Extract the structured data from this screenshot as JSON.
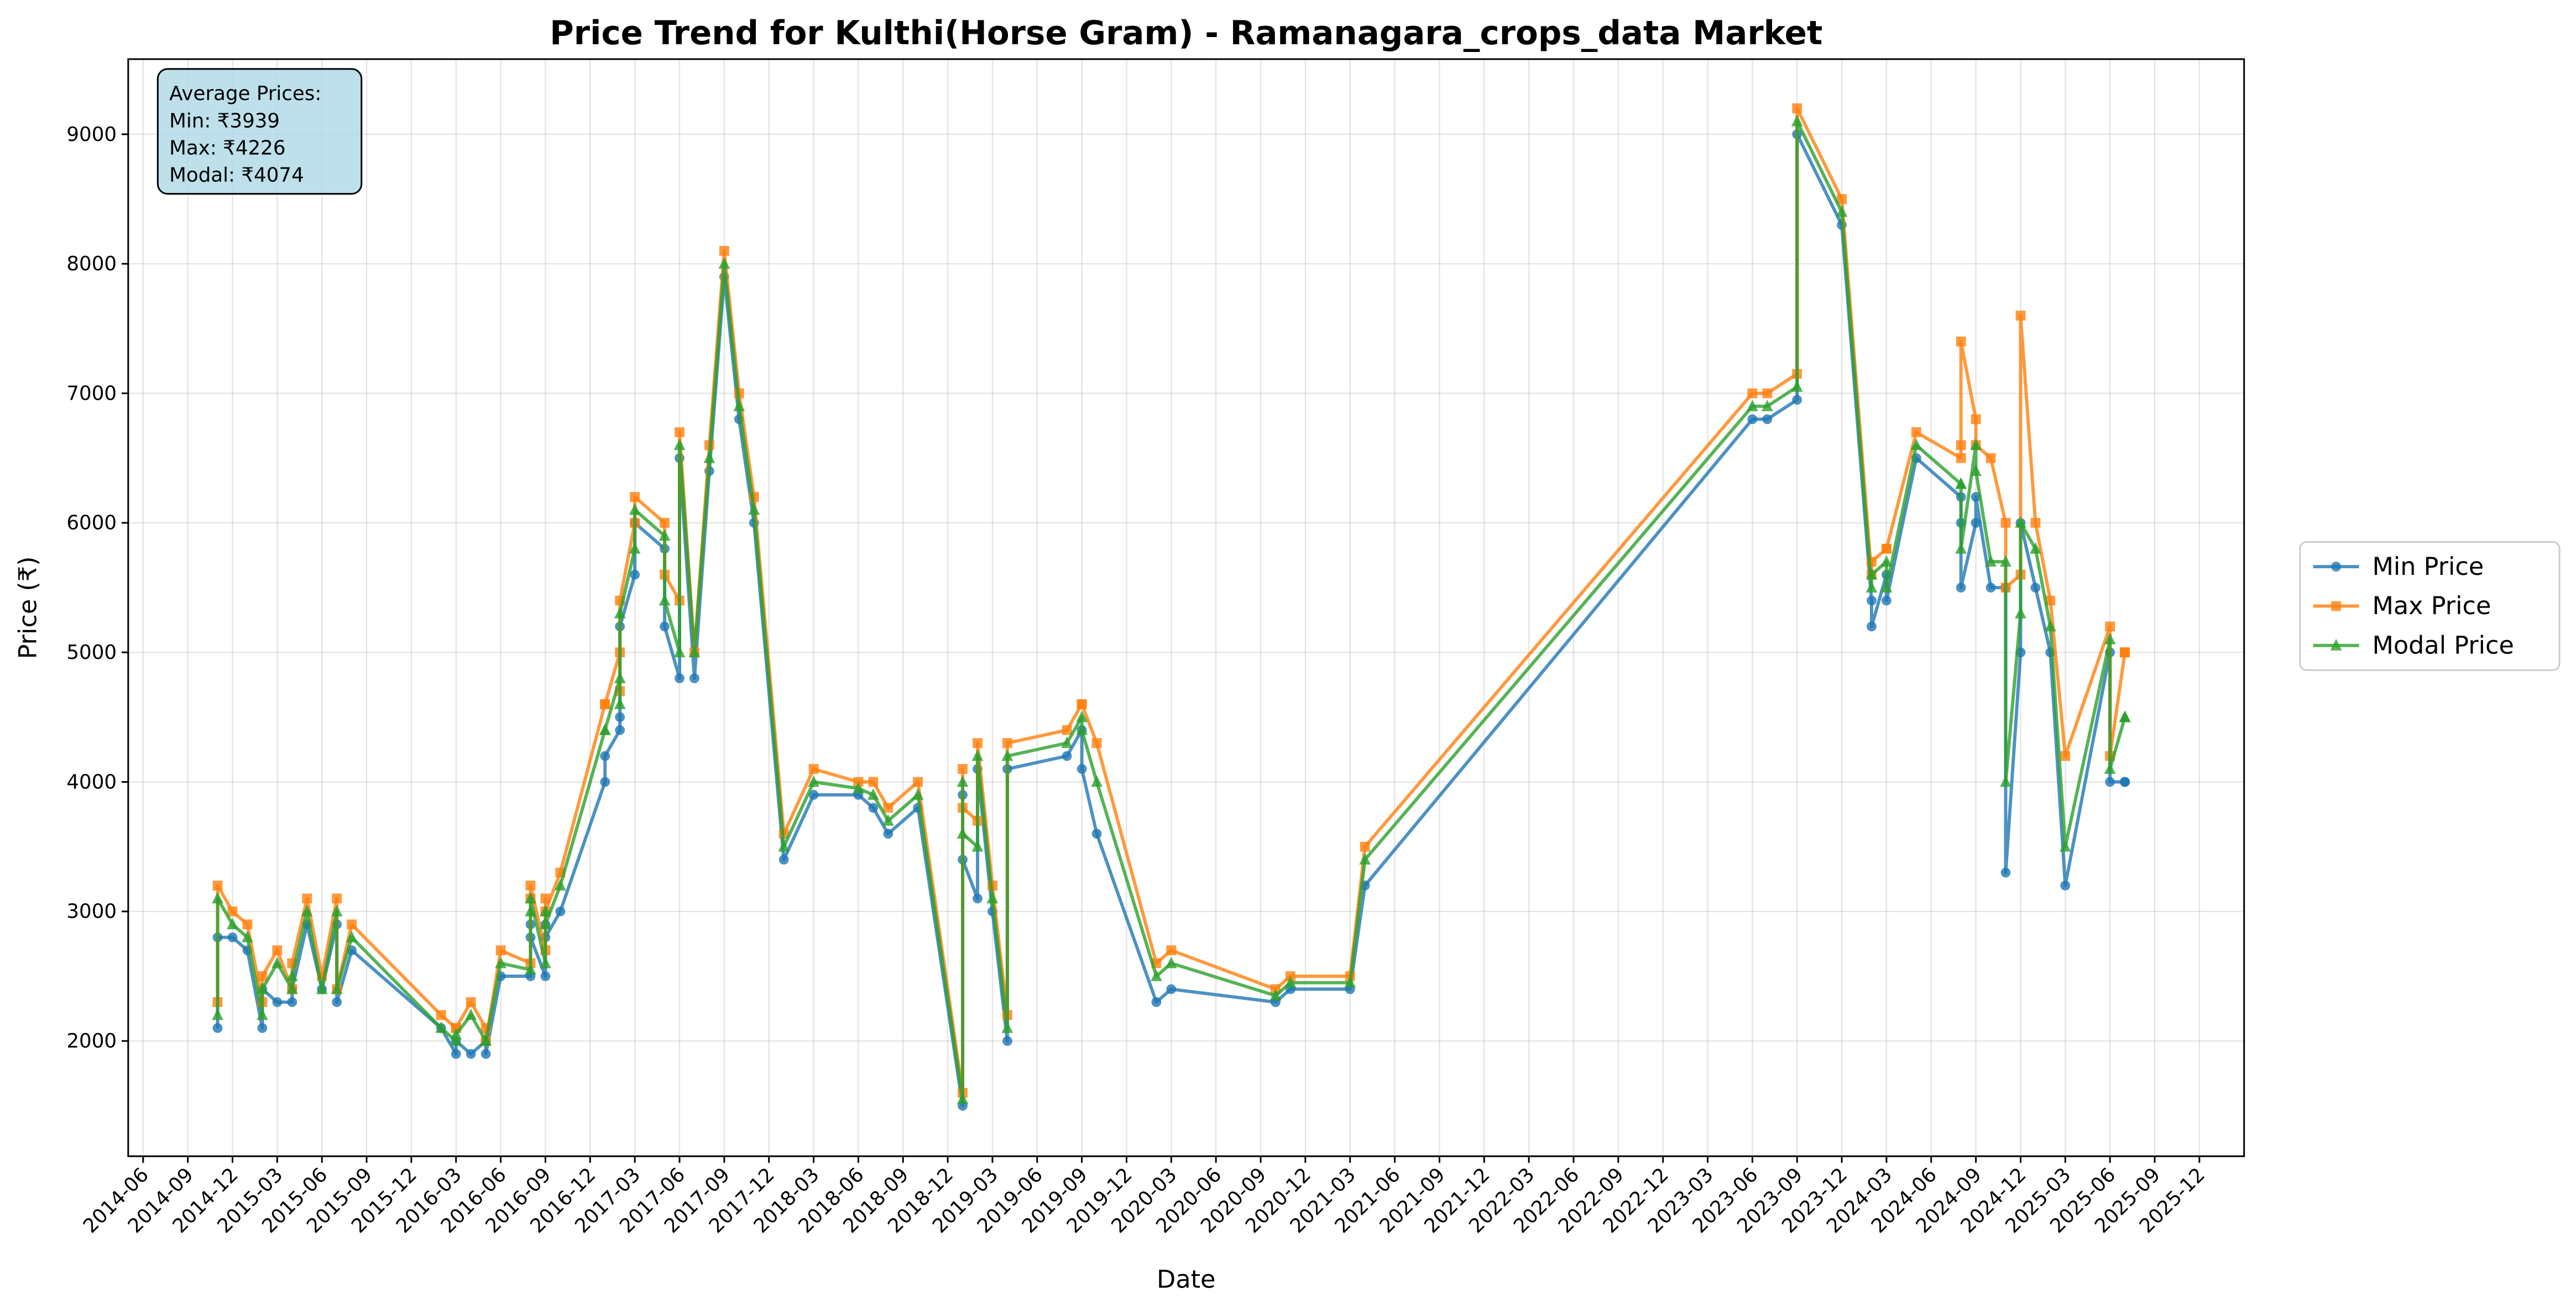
{
  "chart_data": {
    "type": "line",
    "title": "Price Trend for Kulthi(Horse Gram) - Ramanagara_crops_data Market",
    "xlabel": "Date",
    "ylabel": "Price (₹)",
    "annotation": [
      "Average Prices:",
      "Min: ₹3939",
      "Max: ₹4226",
      "Modal: ₹4074"
    ],
    "x": [
      "2014-11",
      "2014-11",
      "2014-12",
      "2015-01",
      "2015-02",
      "2015-02",
      "2015-03",
      "2015-04",
      "2015-04",
      "2015-05",
      "2015-06",
      "2015-07",
      "2015-07",
      "2015-08",
      "2016-02",
      "2016-03",
      "2016-03",
      "2016-04",
      "2016-05",
      "2016-05",
      "2016-06",
      "2016-08",
      "2016-08",
      "2016-08",
      "2016-09",
      "2016-09",
      "2016-09",
      "2016-10",
      "2017-01",
      "2017-01",
      "2017-02",
      "2017-02",
      "2017-02",
      "2017-03",
      "2017-03",
      "2017-05",
      "2017-05",
      "2017-06",
      "2017-06",
      "2017-07",
      "2017-08",
      "2017-09",
      "2017-10",
      "2017-11",
      "2018-01",
      "2018-03",
      "2018-06",
      "2018-07",
      "2018-08",
      "2018-10",
      "2019-01",
      "2019-01",
      "2019-01",
      "2019-02",
      "2019-02",
      "2019-03",
      "2019-04",
      "2019-04",
      "2019-08",
      "2019-09",
      "2019-09",
      "2019-10",
      "2020-02",
      "2020-03",
      "2020-10",
      "2020-11",
      "2021-03",
      "2021-04",
      "2023-06",
      "2023-07",
      "2023-09",
      "2023-09",
      "2023-12",
      "2024-02",
      "2024-02",
      "2024-03",
      "2024-03",
      "2024-05",
      "2024-08",
      "2024-08",
      "2024-08",
      "2024-09",
      "2024-09",
      "2024-10",
      "2024-11",
      "2024-11",
      "2024-12",
      "2024-12",
      "2025-01",
      "2025-02",
      "2025-03",
      "2025-06",
      "2025-06",
      "2025-07",
      "2025-07",
      "2025-07"
    ],
    "series": [
      {
        "name": "Min Price",
        "color": "#1f77b4",
        "marker": "circle",
        "values": [
          2100,
          2800,
          2800,
          2700,
          2100,
          2400,
          2300,
          2300,
          2400,
          2900,
          2400,
          2900,
          2300,
          2700,
          2100,
          1900,
          2000,
          1900,
          2000,
          1900,
          2500,
          2500,
          2900,
          2800,
          2500,
          2900,
          2800,
          3000,
          4000,
          4200,
          4400,
          4500,
          5200,
          5600,
          6000,
          5800,
          5200,
          4800,
          6500,
          4800,
          6400,
          7900,
          6800,
          6000,
          3400,
          3900,
          3900,
          3800,
          3600,
          3800,
          1500,
          3900,
          3400,
          3100,
          4100,
          3000,
          2000,
          4100,
          4200,
          4400,
          4100,
          3600,
          2300,
          2400,
          2300,
          2400,
          2400,
          3200,
          6800,
          6800,
          6950,
          9000,
          8300,
          5400,
          5200,
          5600,
          5400,
          6500,
          6200,
          6000,
          5500,
          6000,
          6200,
          5500,
          5500,
          3300,
          5000,
          6000,
          5500,
          5000,
          3200,
          5000,
          4000,
          4000,
          4000,
          4000
        ]
      },
      {
        "name": "Max Price",
        "color": "#ff7f0e",
        "marker": "square",
        "values": [
          2300,
          3200,
          3000,
          2900,
          2300,
          2500,
          2700,
          2400,
          2600,
          3100,
          2500,
          3100,
          2400,
          2900,
          2200,
          2100,
          2100,
          2300,
          2100,
          2000,
          2700,
          2600,
          3100,
          3200,
          2700,
          3100,
          3000,
          3300,
          4600,
          4600,
          5000,
          4700,
          5400,
          6000,
          6200,
          6000,
          5600,
          5400,
          6700,
          5000,
          6600,
          8100,
          7000,
          6200,
          3600,
          4100,
          4000,
          4000,
          3800,
          4000,
          1600,
          4100,
          3800,
          3700,
          4300,
          3200,
          2200,
          4300,
          4400,
          4600,
          4600,
          4300,
          2600,
          2700,
          2400,
          2500,
          2500,
          3500,
          7000,
          7000,
          7150,
          9200,
          8500,
          5600,
          5700,
          5800,
          5800,
          6700,
          6500,
          6600,
          7400,
          6800,
          6600,
          6500,
          6000,
          5500,
          5600,
          7600,
          6000,
          5400,
          4200,
          5200,
          4200,
          5000,
          5000,
          5000
        ]
      },
      {
        "name": "Modal Price",
        "color": "#2ca02c",
        "marker": "triangle",
        "values": [
          2200,
          3100,
          2900,
          2800,
          2200,
          2400,
          2600,
          2400,
          2500,
          3000,
          2400,
          3000,
          2400,
          2800,
          2100,
          2000,
          2050,
          2200,
          2000,
          2000,
          2600,
          2550,
          3000,
          3100,
          2600,
          3000,
          2900,
          3200,
          4400,
          4400,
          4800,
          4600,
          5300,
          5800,
          6100,
          5900,
          5400,
          5000,
          6600,
          5000,
          6500,
          8000,
          6900,
          6100,
          3500,
          4000,
          3950,
          3900,
          3700,
          3900,
          1550,
          4000,
          3600,
          3500,
          4200,
          3100,
          2100,
          4200,
          4300,
          4500,
          4400,
          4000,
          2500,
          2600,
          2350,
          2450,
          2450,
          3400,
          6900,
          6900,
          7050,
          9100,
          8400,
          5500,
          5600,
          5700,
          5500,
          6600,
          6300,
          6300,
          5800,
          6600,
          6400,
          5700,
          5700,
          4000,
          5300,
          6000,
          5800,
          5200,
          3500,
          5100,
          4100,
          4500,
          4500,
          4500
        ]
      }
    ],
    "xlim": [
      "2014-05",
      "2026-03"
    ],
    "xticks": [
      "2014-06",
      "2014-09",
      "2014-12",
      "2015-03",
      "2015-06",
      "2015-09",
      "2015-12",
      "2016-03",
      "2016-06",
      "2016-09",
      "2016-12",
      "2017-03",
      "2017-06",
      "2017-09",
      "2017-12",
      "2018-03",
      "2018-06",
      "2018-09",
      "2018-12",
      "2019-03",
      "2019-06",
      "2019-09",
      "2019-12",
      "2020-03",
      "2020-06",
      "2020-09",
      "2020-12",
      "2021-03",
      "2021-06",
      "2021-09",
      "2021-12",
      "2022-03",
      "2022-06",
      "2022-09",
      "2022-12",
      "2023-03",
      "2023-06",
      "2023-09",
      "2023-12",
      "2024-03",
      "2024-06",
      "2024-09",
      "2024-12",
      "2025-03",
      "2025-06",
      "2025-09",
      "2025-12"
    ],
    "ylim": [
      1110,
      9580
    ],
    "yticks": [
      2000,
      3000,
      4000,
      5000,
      6000,
      7000,
      8000,
      9000
    ],
    "grid": true,
    "legend": "right"
  }
}
